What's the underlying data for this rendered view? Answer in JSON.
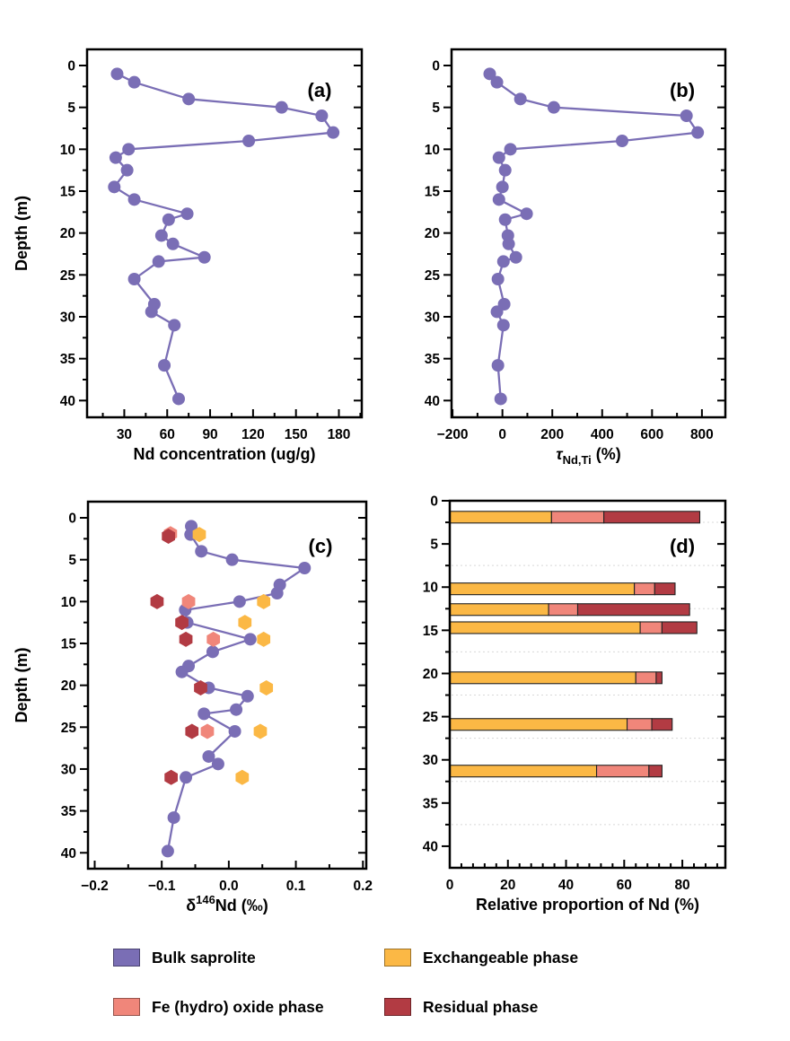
{
  "figure": {
    "background": "#ffffff"
  },
  "colors": {
    "bulk": "#7A6EB5",
    "fe_oxide": "#F0867A",
    "exchangeable": "#FBB845",
    "residual": "#B23B43",
    "axis": "#000000",
    "grid": "#D8D8D8",
    "bar_outline": "#222222"
  },
  "depth_axis": {
    "label": "Depth (m)",
    "tick_values": [
      0,
      5,
      10,
      15,
      20,
      25,
      30,
      35,
      40
    ],
    "tick_labels": [
      "0",
      "5",
      "10",
      "15",
      "20",
      "25",
      "30",
      "35",
      "40"
    ],
    "minor_values": [
      2.5,
      7.5,
      12.5,
      17.5,
      22.5,
      27.5,
      32.5,
      37.5
    ]
  },
  "chart_data": [
    {
      "id": "a",
      "panel_label": "(a)",
      "type": "line",
      "xlabel": "Nd concentration (ug/g)",
      "xlabel_parts": [
        {
          "text": "Nd concentration (ug/g)"
        }
      ],
      "xlim": [
        4,
        196
      ],
      "xticks": [
        30,
        60,
        90,
        120,
        150,
        180
      ],
      "xtick_labels": [
        "30",
        "60",
        "90",
        "120",
        "150",
        "180"
      ],
      "xminors": [
        15,
        45,
        75,
        105,
        135,
        165,
        195
      ],
      "ylim": [
        -1.93,
        42.0
      ],
      "show_ylabel": true,
      "series": [
        {
          "name": "Bulk saprolite",
          "color_key": "bulk",
          "marker": "circle",
          "line": true,
          "depths": [
            1,
            2,
            4,
            5,
            6,
            8,
            9,
            10,
            11,
            12.5,
            14.5,
            16,
            17.7,
            18.4,
            20.3,
            21.3,
            22.9,
            23.4,
            25.5,
            28.5,
            29.4,
            31,
            35.8,
            39.8
          ],
          "values": [
            25,
            37,
            75,
            140,
            168,
            176,
            117,
            33,
            24,
            32,
            23,
            37,
            74,
            61,
            56,
            64,
            86,
            54,
            37,
            51,
            49,
            65,
            58,
            68
          ]
        }
      ]
    },
    {
      "id": "b",
      "panel_label": "(b)",
      "type": "line",
      "xlabel": "tau_Nd,Ti (%)",
      "xlabel_parts": [
        {
          "text": "τ",
          "italic": true
        },
        {
          "text": "Nd,Ti",
          "script": "sub"
        },
        {
          "text": " (%)"
        }
      ],
      "xlim": [
        -204,
        894
      ],
      "xticks": [
        -200,
        0,
        200,
        400,
        600,
        800
      ],
      "xtick_labels": [
        "−200",
        "0",
        "200",
        "400",
        "600",
        "800"
      ],
      "xminors": [
        -100,
        100,
        300,
        500,
        700
      ],
      "ylim": [
        -1.93,
        42.0
      ],
      "show_ylabel": false,
      "series": [
        {
          "name": "Bulk saprolite",
          "color_key": "bulk",
          "marker": "circle",
          "line": true,
          "depths": [
            1,
            2,
            4,
            5,
            6,
            8,
            9,
            10,
            11,
            12.5,
            14.5,
            16,
            17.7,
            18.4,
            20.3,
            21.3,
            22.9,
            23.4,
            25.5,
            28.5,
            29.4,
            31,
            35.8,
            39.8
          ],
          "values": [
            -51,
            -22,
            72,
            206,
            738,
            783,
            480,
            32,
            -14,
            11,
            0,
            -14,
            97,
            11,
            22,
            25,
            54,
            4,
            -18,
            7,
            -22,
            4,
            -18,
            -7
          ]
        }
      ]
    },
    {
      "id": "c",
      "panel_label": "(c)",
      "type": "line",
      "xlabel": "d146Nd (permil)",
      "xlabel_parts": [
        {
          "text": "δ"
        },
        {
          "text": "146",
          "script": "sup"
        },
        {
          "text": "Nd (‰)"
        }
      ],
      "xlim": [
        -0.21,
        0.205
      ],
      "xticks": [
        -0.2,
        -0.1,
        0,
        0.1,
        0.2
      ],
      "xtick_labels": [
        "−0.2",
        "−0.1",
        "0.0",
        "0.1",
        "0.2"
      ],
      "xminors": [
        -0.15,
        -0.05,
        0.05,
        0.15
      ],
      "ylim": [
        -1.93,
        41.9
      ],
      "show_ylabel": true,
      "series": [
        {
          "name": "Bulk saprolite",
          "color_key": "bulk",
          "marker": "circle",
          "line": true,
          "depths": [
            1,
            2,
            4,
            5,
            6,
            8,
            9,
            10,
            11,
            12.5,
            14.5,
            16,
            17.7,
            18.4,
            20.3,
            21.3,
            22.9,
            23.4,
            25.5,
            28.5,
            29.4,
            31,
            35.8,
            39.8
          ],
          "values": [
            -0.056,
            -0.057,
            -0.041,
            0.005,
            0.113,
            0.076,
            0.072,
            0.016,
            -0.065,
            -0.062,
            0.032,
            -0.024,
            -0.06,
            -0.07,
            -0.03,
            0.028,
            0.011,
            -0.037,
            0.009,
            -0.03,
            -0.016,
            -0.064,
            -0.082,
            -0.091
          ]
        },
        {
          "name": "Fe (hydro) oxide phase",
          "color_key": "fe_oxide",
          "marker": "hexagon",
          "line": false,
          "depths": [
            1.9,
            10,
            14.5,
            25.5
          ],
          "values": [
            -0.087,
            -0.06,
            -0.023,
            -0.032
          ]
        },
        {
          "name": "Residual phase",
          "color_key": "residual",
          "marker": "hexagon",
          "line": false,
          "depths": [
            2.2,
            10,
            12.5,
            14.5,
            20.3,
            25.5,
            31
          ],
          "values": [
            -0.09,
            -0.107,
            -0.07,
            -0.064,
            -0.042,
            -0.055,
            -0.086
          ]
        },
        {
          "name": "Exchangeable phase",
          "color_key": "exchangeable",
          "marker": "hexagon",
          "line": false,
          "depths": [
            2,
            10,
            12.5,
            14.5,
            20.3,
            25.5,
            31
          ],
          "values": [
            -0.044,
            0.052,
            0.024,
            0.052,
            0.056,
            0.047,
            0.02
          ]
        }
      ]
    },
    {
      "id": "d",
      "panel_label": "(d)",
      "type": "stacked-bar",
      "xlabel": "Relative proportion of Nd (%)",
      "xlabel_parts": [
        {
          "text": "Relative proportion of Nd (%)"
        }
      ],
      "xlim": [
        0,
        94.8
      ],
      "xticks": [
        0,
        20,
        40,
        60,
        80
      ],
      "xtick_labels": [
        "0",
        "20",
        "40",
        "60",
        "80"
      ],
      "xminors": [
        4,
        8,
        12,
        16,
        24,
        28,
        32,
        36,
        44,
        48,
        52,
        56,
        64,
        68,
        72,
        76,
        84,
        88,
        92
      ],
      "ylim": [
        0,
        42.5
      ],
      "show_ylabel": false,
      "gridline_depths": [
        2.5,
        7.5,
        12.5,
        17.5,
        22.5,
        27.5,
        32.5,
        37.5
      ],
      "bars": {
        "depths": [
          1.9,
          10.2,
          12.6,
          14.7,
          20.5,
          25.9,
          31.3
        ],
        "segments": [
          {
            "name": "Exchangeable phase",
            "color_key": "exchangeable",
            "cumulative_ends": [
              35,
              63.5,
              34,
              65.5,
              64,
              61,
              50.5
            ]
          },
          {
            "name": "Fe (hydro) oxide phase",
            "color_key": "fe_oxide",
            "cumulative_ends": [
              53,
              70.5,
              44,
              73,
              71,
              69.5,
              68.5
            ]
          },
          {
            "name": "Residual phase",
            "color_key": "residual",
            "cumulative_ends": [
              86,
              77.5,
              82.5,
              85,
              73,
              76.5,
              73
            ]
          }
        ]
      }
    }
  ],
  "legend": {
    "items": [
      {
        "label": "Bulk saprolite",
        "color_key": "bulk"
      },
      {
        "label": "Fe (hydro) oxide phase",
        "color_key": "fe_oxide"
      },
      {
        "label": "Exchangeable phase",
        "color_key": "exchangeable"
      },
      {
        "label": "Residual phase",
        "color_key": "residual"
      }
    ]
  }
}
